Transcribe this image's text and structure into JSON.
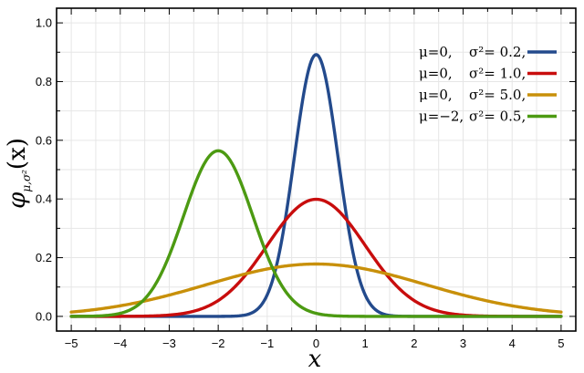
{
  "chart_data": {
    "type": "line",
    "xlabel": "x",
    "ylabel": {
      "main": "φ",
      "subscript": "μ,σ²",
      "arg": "(x)"
    },
    "xlim": [
      -5.3,
      5.3
    ],
    "ylim": [
      -0.05,
      1.05
    ],
    "x_ticks": [
      -5,
      -4,
      -3,
      -2,
      -1,
      0,
      1,
      2,
      3,
      4,
      5
    ],
    "x_tick_labels": [
      "−5",
      "−4",
      "−3",
      "−2",
      "−1",
      "0",
      "1",
      "2",
      "3",
      "4",
      "5"
    ],
    "y_ticks": [
      0.0,
      0.2,
      0.4,
      0.6,
      0.8,
      1.0
    ],
    "y_tick_labels": [
      "0.0",
      "0.2",
      "0.4",
      "0.6",
      "0.8",
      "1.0"
    ],
    "grid": true,
    "legend_position": "top-right",
    "series": [
      {
        "name": "μ=0,   σ²= 0.2,",
        "mu_text": "μ=0,",
        "sigma_text": "σ²= 0.2,",
        "mu": 0,
        "variance": 0.2,
        "color": "#234a8c"
      },
      {
        "name": "μ=0,   σ²= 1.0,",
        "mu_text": "μ=0,",
        "sigma_text": "σ²= 1.0,",
        "mu": 0,
        "variance": 1.0,
        "color": "#c80d0d"
      },
      {
        "name": "μ=0,   σ²= 5.0,",
        "mu_text": "μ=0,",
        "sigma_text": "σ²= 5.0,",
        "mu": 0,
        "variance": 5.0,
        "color": "#c8900a"
      },
      {
        "name": "μ=−2,  σ²= 0.5,",
        "mu_text": "μ=−2,",
        "sigma_text": "σ²= 0.5,",
        "mu": -2,
        "variance": 0.5,
        "color": "#4c9a12"
      }
    ],
    "x_range": [
      -5,
      5
    ]
  }
}
